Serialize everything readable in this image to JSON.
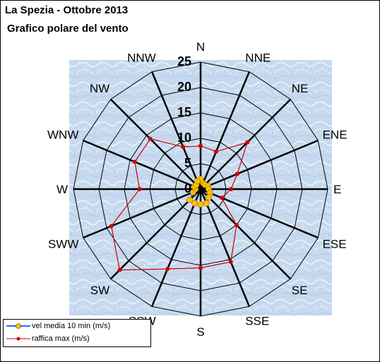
{
  "title": "La Spezia - Ottobre 2013",
  "subtitle": "Grafico polare del vento",
  "chart_data": {
    "type": "radar",
    "directions": [
      "N",
      "NNE",
      "NE",
      "ENE",
      "E",
      "ESE",
      "SE",
      "SSE",
      "S",
      "SSW",
      "SW",
      "SWW",
      "W",
      "WNW",
      "NW",
      "NNW"
    ],
    "radial_ticks": [
      "0",
      "5",
      "10",
      "15",
      "20",
      "25"
    ],
    "rmax": 25,
    "series": [
      {
        "name": "vel media 10 min (m/s)",
        "color": "#ffc000",
        "line_color": "#3366ff",
        "values": [
          2.0,
          1.3,
          1.2,
          1.6,
          1.6,
          2.0,
          2.3,
          3.0,
          3.0,
          3.0,
          3.0,
          1.6,
          1.0,
          1.3,
          1.2,
          1.7
        ]
      },
      {
        "name": "raffica max (m/s)",
        "color": "#cc0000",
        "line_color": "#cc0000",
        "values": [
          8.5,
          8.0,
          13.0,
          7.8,
          6.0,
          4.5,
          10.0,
          15.5,
          15.5,
          17.0,
          22.5,
          19.0,
          12.0,
          14.0,
          14.0,
          9.0
        ]
      }
    ]
  }
}
